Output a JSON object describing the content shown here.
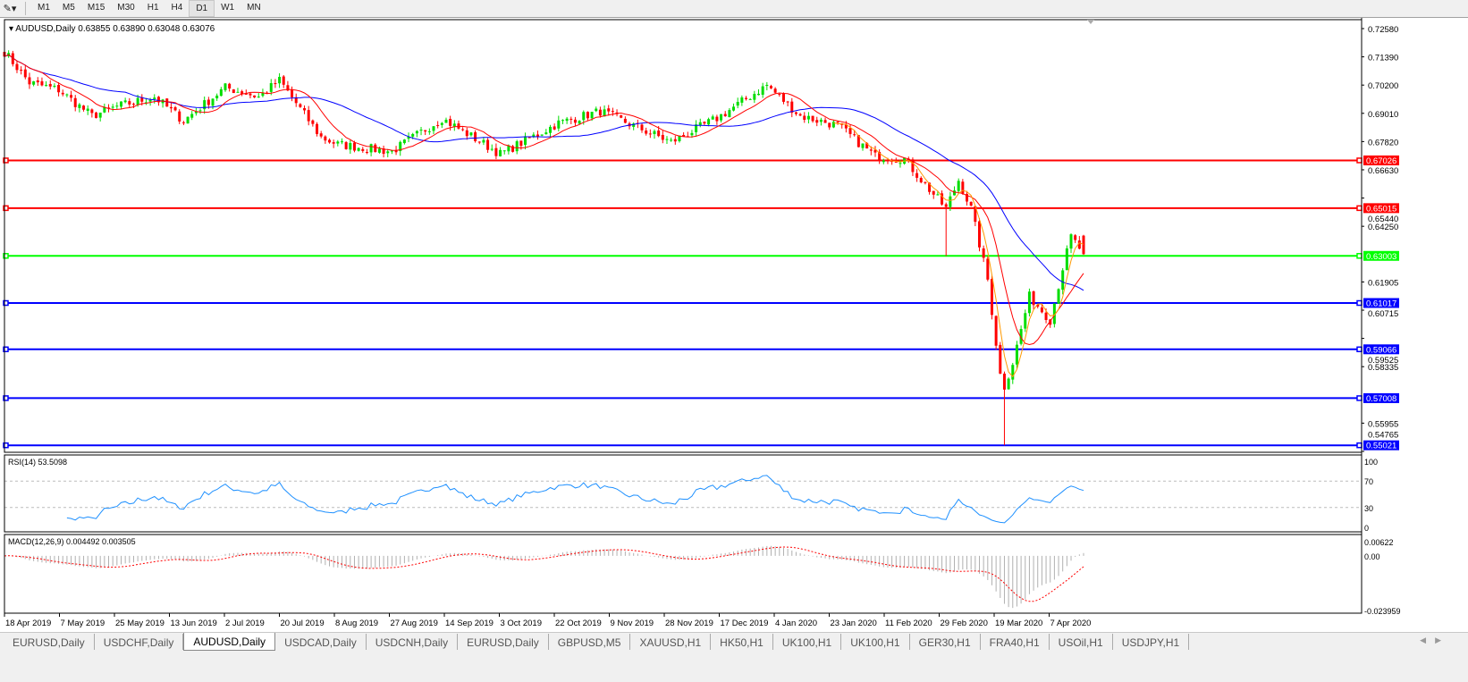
{
  "toolbar": {
    "timeframes": [
      "M1",
      "M5",
      "M15",
      "M30",
      "H1",
      "H4",
      "D1",
      "W1",
      "MN"
    ],
    "active_timeframe": "D1"
  },
  "chart_data": {
    "type": "candlestick",
    "title": "AUDUSD,Daily",
    "ohlc_readout": "0.63855 0.63890 0.63048 0.63076",
    "last_bar": {
      "open": 0.63855,
      "high": 0.6389,
      "low": 0.63048,
      "close": 0.63076
    },
    "price_ticks": [
      "0.72580",
      "0.71390",
      "0.70200",
      "0.69010",
      "0.67820",
      "0.66630",
      "0.65440",
      "0.64250",
      "0.61905",
      "0.60715",
      "0.59525",
      "0.58335",
      "0.55955",
      "0.54765"
    ],
    "ylim": [
      0.54765,
      0.7258
    ],
    "x_ticks": [
      "18 Apr 2019",
      "7 May 2019",
      "25 May 2019",
      "13 Jun 2019",
      "2 Jul 2019",
      "20 Jul 2019",
      "8 Aug 2019",
      "27 Aug 2019",
      "14 Sep 2019",
      "3 Oct 2019",
      "22 Oct 2019",
      "9 Nov 2019",
      "28 Nov 2019",
      "17 Dec 2019",
      "4 Jan 2020",
      "23 Jan 2020",
      "11 Feb 2020",
      "29 Feb 2020",
      "19 Mar 2020",
      "7 Apr 2020"
    ],
    "approx_close_path": [
      [
        "2019-04-18",
        0.716
      ],
      [
        "2019-04-26",
        0.703
      ],
      [
        "2019-05-07",
        0.7
      ],
      [
        "2019-05-17",
        0.689
      ],
      [
        "2019-05-25",
        0.693
      ],
      [
        "2019-06-07",
        0.697
      ],
      [
        "2019-06-18",
        0.687
      ],
      [
        "2019-07-02",
        0.701
      ],
      [
        "2019-07-12",
        0.697
      ],
      [
        "2019-07-19",
        0.704
      ],
      [
        "2019-08-02",
        0.68
      ],
      [
        "2019-08-08",
        0.677
      ],
      [
        "2019-08-27",
        0.674
      ],
      [
        "2019-09-12",
        0.688
      ],
      [
        "2019-10-02",
        0.673
      ],
      [
        "2019-10-22",
        0.686
      ],
      [
        "2019-11-05",
        0.691
      ],
      [
        "2019-11-28",
        0.678
      ],
      [
        "2019-12-13",
        0.688
      ],
      [
        "2019-12-31",
        0.702
      ],
      [
        "2020-01-10",
        0.689
      ],
      [
        "2020-01-23",
        0.685
      ],
      [
        "2020-02-05",
        0.672
      ],
      [
        "2020-02-14",
        0.671
      ],
      [
        "2020-02-21",
        0.66
      ],
      [
        "2020-02-28",
        0.65
      ],
      [
        "2020-03-04",
        0.662
      ],
      [
        "2020-03-09",
        0.65
      ],
      [
        "2020-03-13",
        0.62
      ],
      [
        "2020-03-18",
        0.58
      ],
      [
        "2020-03-19",
        0.575
      ],
      [
        "2020-03-23",
        0.585
      ],
      [
        "2020-03-27",
        0.613
      ],
      [
        "2020-04-01",
        0.607
      ],
      [
        "2020-04-03",
        0.603
      ],
      [
        "2020-04-08",
        0.625
      ],
      [
        "2020-04-10",
        0.638
      ],
      [
        "2020-04-15",
        0.631
      ]
    ],
    "horizontal_levels": [
      {
        "price": "0.67026",
        "color": "#ff0000"
      },
      {
        "price": "0.65015",
        "color": "#ff0000"
      },
      {
        "price": "0.63003",
        "color": "#00ff00"
      },
      {
        "price": "0.61017",
        "color": "#0000ff"
      },
      {
        "price": "0.59066",
        "color": "#0000ff"
      },
      {
        "price": "0.57008",
        "color": "#0000ff"
      },
      {
        "price": "0.55021",
        "color": "#0000ff"
      }
    ],
    "colors": {
      "bull": "#00dd00",
      "bear": "#ff0000",
      "ma_fast": "#ff0000",
      "ma_faster": "#ff9900",
      "ma_slow": "#0000ff",
      "rsi": "#1e90ff",
      "macd_hist": "#b0b0b0",
      "macd_signal": "#ff0000"
    },
    "rsi": {
      "label": "RSI(14) 53.5098",
      "ticks": [
        "100",
        "70",
        "30",
        "0"
      ],
      "levels": [
        70,
        30
      ]
    },
    "macd": {
      "label": "MACD(12,26,9) 0.004492 0.003505",
      "ticks": [
        "0.00622",
        "0.00",
        "-0.023959"
      ]
    }
  },
  "tabs": [
    "EURUSD,Daily",
    "USDCHF,Daily",
    "AUDUSD,Daily",
    "USDCAD,Daily",
    "USDCNH,Daily",
    "EURUSD,Daily",
    "GBPUSD,M5",
    "XAUUSD,H1",
    "HK50,H1",
    "UK100,H1",
    "UK100,H1",
    "GER30,H1",
    "FRA40,H1",
    "USOil,H1",
    "USDJPY,H1"
  ],
  "active_tab": "AUDUSD,Daily"
}
